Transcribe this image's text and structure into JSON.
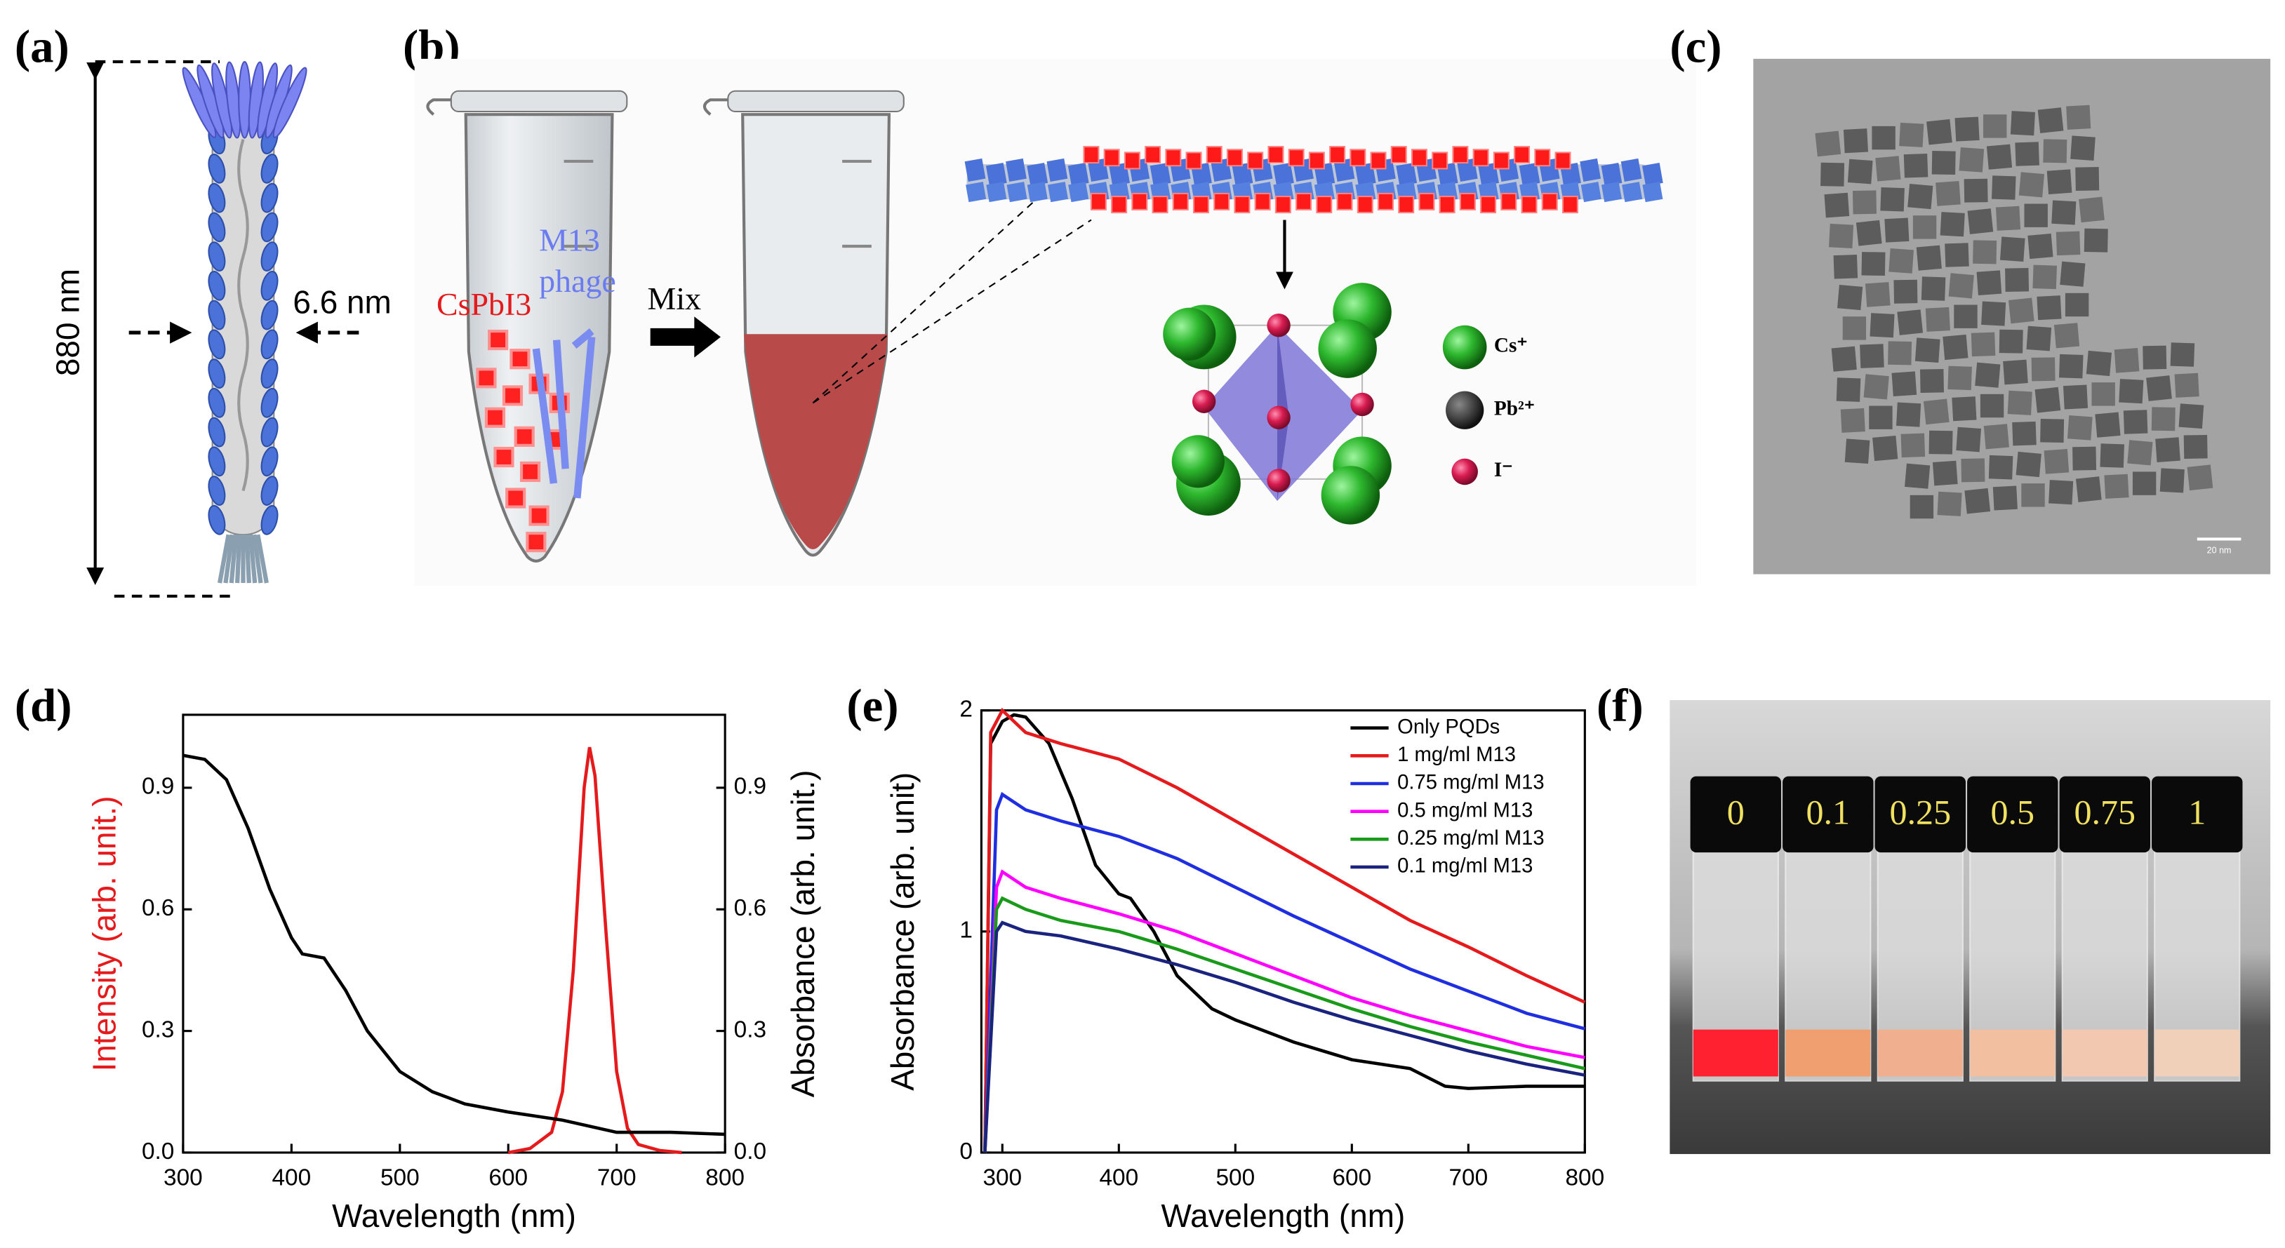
{
  "panel_a": {
    "label": "(a)",
    "length": "880 nm",
    "width": "6.6 nm"
  },
  "panel_b": {
    "label": "(b)",
    "quantum_dot": "CsPbI3",
    "phage": [
      "M13",
      "phage"
    ],
    "mix": "Mix",
    "ions": [
      "Cs⁺",
      "Pb²⁺",
      "I⁻"
    ]
  },
  "panel_c": {
    "label": "(c)",
    "scale_bar": "20 nm"
  },
  "panel_f": {
    "label": "(f)",
    "vials": [
      "0",
      "0.1",
      "0.25",
      "0.5",
      "0.75",
      "1"
    ]
  },
  "chart_data": [
    {
      "type": "line",
      "panel": "(d)",
      "xlabel": "Wavelength (nm)",
      "ylabel": "Intensity (arb. unit.)",
      "y2label": "Absorbance (arb. unit.)",
      "xlim": [
        300,
        800
      ],
      "xticks": [
        300,
        400,
        500,
        600,
        700,
        800
      ],
      "ylim": [
        0,
        1.08
      ],
      "yticks": [
        {
          "value": 0,
          "label": "0.0"
        },
        0.3,
        0.6,
        0.9
      ],
      "y2lim": [
        0,
        1.08
      ],
      "y2ticks": [
        {
          "value": 0,
          "label": "0.0"
        },
        0.3,
        0.6,
        0.9
      ],
      "ylabel_color": "#e41a1c",
      "series": [
        {
          "color": "#e41a1c",
          "axis": "y",
          "x": [
            600,
            620,
            640,
            650,
            660,
            670,
            675,
            680,
            690,
            700,
            710,
            720,
            740,
            760
          ],
          "values": [
            0,
            0.01,
            0.05,
            0.15,
            0.45,
            0.9,
            1.0,
            0.93,
            0.55,
            0.2,
            0.06,
            0.02,
            0.005,
            0
          ]
        },
        {
          "color": "#000000",
          "axis": "y2",
          "x": [
            300,
            320,
            340,
            360,
            380,
            400,
            410,
            430,
            450,
            470,
            500,
            530,
            560,
            600,
            650,
            700,
            750,
            800
          ],
          "values": [
            0.98,
            0.97,
            0.92,
            0.8,
            0.65,
            0.53,
            0.49,
            0.48,
            0.4,
            0.3,
            0.2,
            0.15,
            0.12,
            0.1,
            0.08,
            0.05,
            0.05,
            0.045
          ]
        }
      ]
    },
    {
      "type": "line",
      "panel": "(e)",
      "xlabel": "Wavelength (nm)",
      "ylabel": "Absorbance (arb. unit)",
      "xlim": [
        282,
        800
      ],
      "xticks": [
        300,
        400,
        500,
        600,
        700,
        800
      ],
      "ylim": [
        0,
        2
      ],
      "yticks": [
        0,
        1,
        2
      ],
      "legend": "upper right",
      "series": [
        {
          "name": "Only PQDs",
          "color": "#000000",
          "x": [
            285,
            290,
            300,
            310,
            320,
            340,
            360,
            380,
            400,
            410,
            430,
            450,
            480,
            500,
            550,
            600,
            650,
            680,
            700,
            750,
            800
          ],
          "values": [
            0,
            1.85,
            1.95,
            1.98,
            1.97,
            1.85,
            1.6,
            1.3,
            1.17,
            1.15,
            1.0,
            0.8,
            0.65,
            0.6,
            0.5,
            0.42,
            0.38,
            0.3,
            0.29,
            0.3,
            0.3
          ]
        },
        {
          "name": "1 mg/ml M13",
          "color": "#e41a1c",
          "x": [
            285,
            290,
            300,
            320,
            350,
            400,
            450,
            500,
            550,
            600,
            650,
            700,
            750,
            800
          ],
          "values": [
            0,
            1.9,
            2.0,
            1.9,
            1.85,
            1.78,
            1.65,
            1.5,
            1.35,
            1.2,
            1.05,
            0.93,
            0.8,
            0.68
          ]
        },
        {
          "name": "0.75 mg/ml M13",
          "color": "#1f2fe0",
          "x": [
            285,
            295,
            300,
            320,
            350,
            400,
            450,
            500,
            550,
            600,
            650,
            700,
            750,
            800
          ],
          "values": [
            0,
            1.55,
            1.62,
            1.55,
            1.5,
            1.43,
            1.33,
            1.2,
            1.07,
            0.95,
            0.83,
            0.73,
            0.63,
            0.56
          ]
        },
        {
          "name": "0.5 mg/ml M13",
          "color": "#ff00ff",
          "x": [
            285,
            295,
            300,
            320,
            350,
            400,
            450,
            500,
            550,
            600,
            650,
            700,
            750,
            800
          ],
          "values": [
            0,
            1.2,
            1.27,
            1.2,
            1.15,
            1.08,
            1.0,
            0.9,
            0.8,
            0.7,
            0.62,
            0.55,
            0.48,
            0.43
          ]
        },
        {
          "name": "0.25 mg/ml M13",
          "color": "#1a9a1a",
          "x": [
            285,
            295,
            300,
            320,
            350,
            400,
            450,
            500,
            550,
            600,
            650,
            700,
            750,
            800
          ],
          "values": [
            0,
            1.1,
            1.15,
            1.1,
            1.05,
            1.0,
            0.92,
            0.83,
            0.74,
            0.65,
            0.57,
            0.5,
            0.44,
            0.38
          ]
        },
        {
          "name": "0.1 mg/ml M13",
          "color": "#1a237e",
          "x": [
            285,
            295,
            300,
            320,
            350,
            400,
            450,
            500,
            550,
            600,
            650,
            700,
            750,
            800
          ],
          "values": [
            0,
            1.0,
            1.04,
            1.0,
            0.98,
            0.92,
            0.85,
            0.77,
            0.68,
            0.6,
            0.53,
            0.46,
            0.4,
            0.35
          ]
        }
      ]
    }
  ]
}
